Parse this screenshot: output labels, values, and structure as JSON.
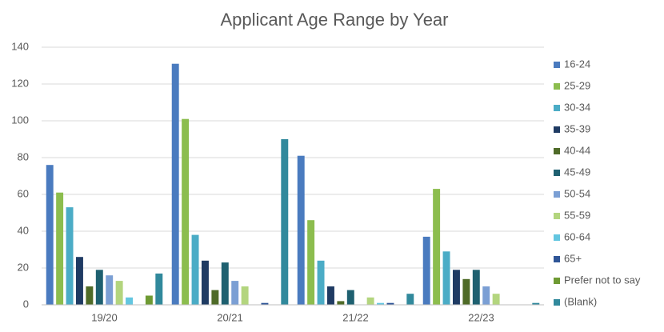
{
  "chart_data": {
    "type": "bar",
    "title": "Applicant Age Range by Year",
    "categories": [
      "19/20",
      "20/21",
      "21/22",
      "22/23"
    ],
    "series": [
      {
        "name": "16-24",
        "color": "#4a7bbf",
        "values": [
          76,
          131,
          81,
          37
        ]
      },
      {
        "name": "25-29",
        "color": "#8cbd4e",
        "values": [
          61,
          101,
          46,
          63
        ]
      },
      {
        "name": "30-34",
        "color": "#4bacc6",
        "values": [
          53,
          38,
          24,
          29
        ]
      },
      {
        "name": "35-39",
        "color": "#1f3b63",
        "values": [
          26,
          24,
          10,
          19
        ]
      },
      {
        "name": "40-44",
        "color": "#4f6b28",
        "values": [
          10,
          8,
          2,
          14
        ]
      },
      {
        "name": "45-49",
        "color": "#1e6070",
        "values": [
          19,
          23,
          8,
          19
        ]
      },
      {
        "name": "50-54",
        "color": "#7b9fd4",
        "values": [
          16,
          13,
          0,
          10
        ]
      },
      {
        "name": "55-59",
        "color": "#b3d57e",
        "values": [
          13,
          10,
          4,
          6
        ]
      },
      {
        "name": "60-64",
        "color": "#63c6e0",
        "values": [
          4,
          0,
          1,
          0
        ]
      },
      {
        "name": "65+",
        "color": "#2f5597",
        "values": [
          0,
          1,
          1,
          0
        ]
      },
      {
        "name": "Prefer not to say",
        "color": "#6e9a33",
        "values": [
          5,
          0,
          0,
          0
        ]
      },
      {
        "name": "(Blank)",
        "color": "#31899c",
        "values": [
          17,
          90,
          6,
          1
        ]
      }
    ],
    "ylim": [
      0,
      140
    ],
    "yticks": [
      0,
      20,
      40,
      60,
      80,
      100,
      120,
      140
    ],
    "grid": true,
    "legend": "right"
  }
}
